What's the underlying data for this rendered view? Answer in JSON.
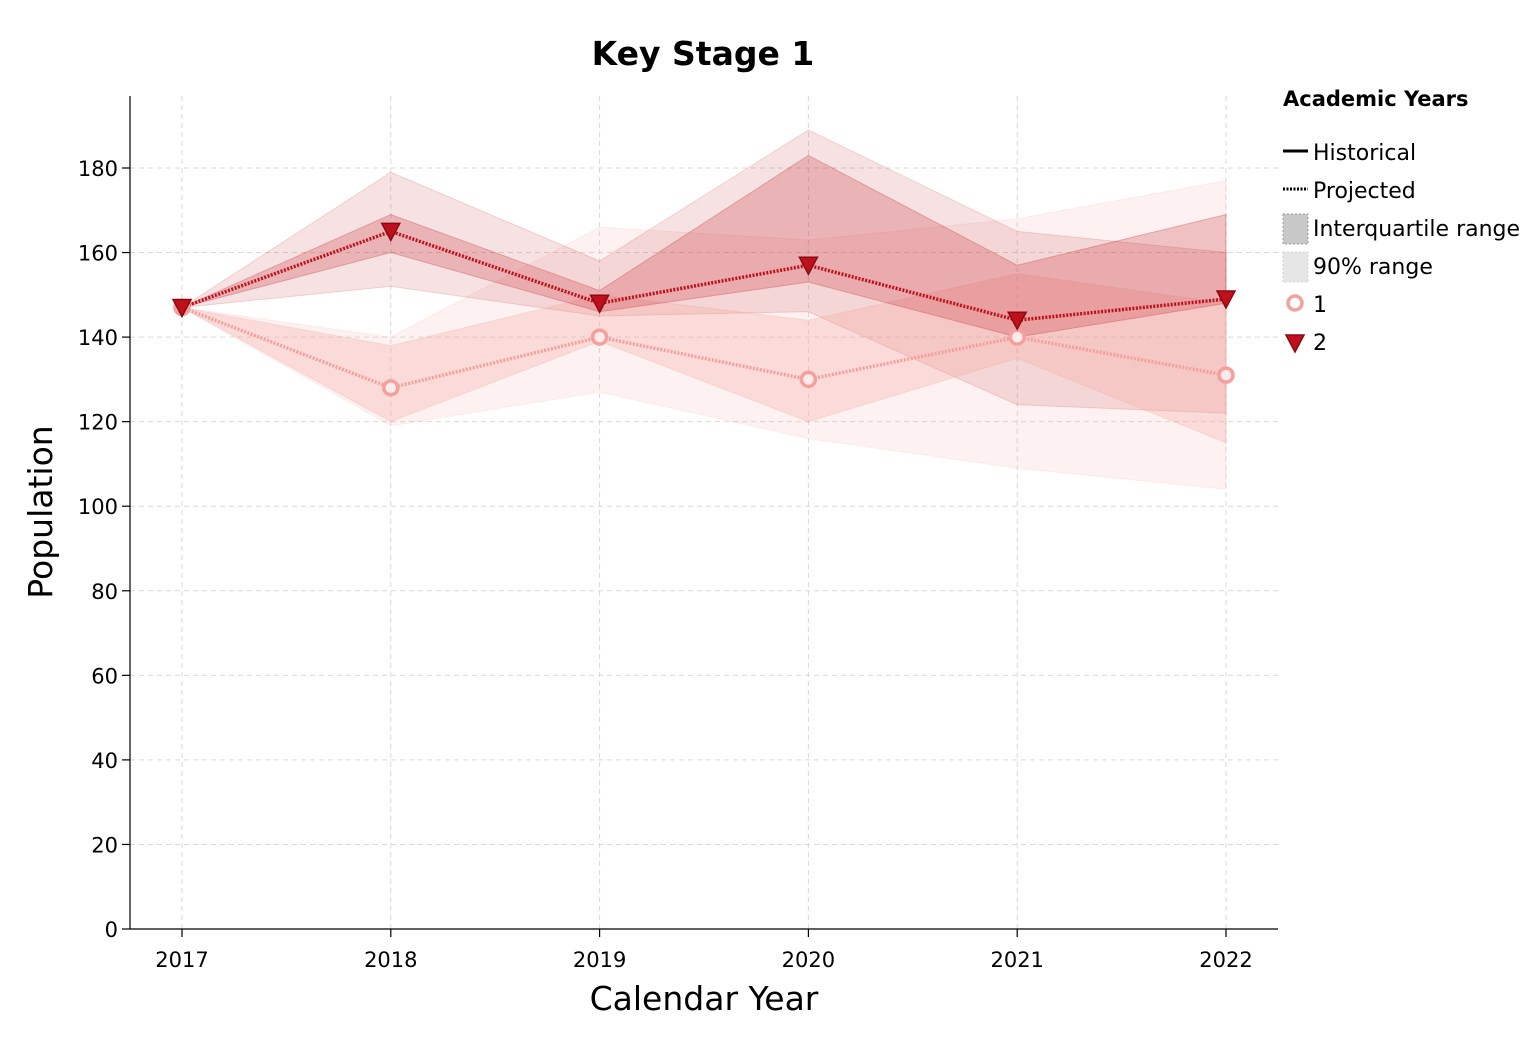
{
  "chart_data": {
    "type": "line",
    "title": "Key Stage 1",
    "xlabel": "Calendar Year",
    "ylabel": "Population",
    "x": [
      2017,
      2018,
      2019,
      2020,
      2021,
      2022
    ],
    "ylim": [
      0,
      196
    ],
    "yticks": [
      0,
      20,
      40,
      60,
      80,
      100,
      120,
      140,
      160,
      180
    ],
    "grid": true,
    "legend_position": "right",
    "legend": {
      "title": "Academic Years",
      "line_styles": [
        "Historical",
        "Projected"
      ],
      "band_styles": [
        "Interquartile range",
        "90% range"
      ]
    },
    "series": [
      {
        "name": "1",
        "color": "#f4a09c",
        "marker": "circle",
        "values": [
          147,
          128,
          140,
          130,
          140,
          131
        ],
        "iqr_low": [
          147,
          120,
          139,
          120,
          135,
          115
        ],
        "iqr_high": [
          147,
          138,
          150,
          144,
          155,
          148
        ],
        "p90_low": [
          147,
          119,
          127,
          116,
          109,
          104
        ],
        "p90_high": [
          147,
          140,
          166,
          163,
          168,
          177
        ]
      },
      {
        "name": "2",
        "color": "#c0101b",
        "marker": "triangle-down",
        "values": [
          147,
          165,
          148,
          157,
          144,
          149
        ],
        "iqr_low": [
          147,
          160,
          146,
          153,
          140,
          148
        ],
        "iqr_high": [
          147,
          169,
          151,
          183,
          157,
          169
        ],
        "p90_low": [
          147,
          152,
          145,
          146,
          124,
          122
        ],
        "p90_high": [
          147,
          179,
          158,
          189,
          165,
          160
        ]
      }
    ]
  }
}
